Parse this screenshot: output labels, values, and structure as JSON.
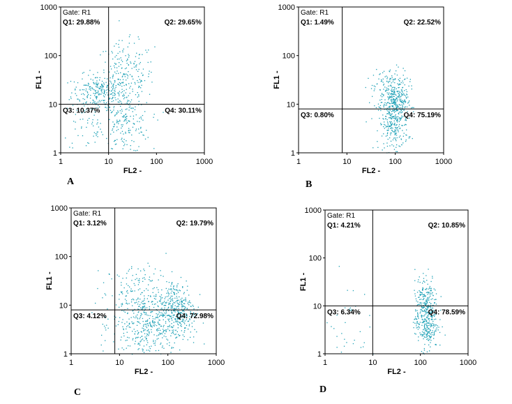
{
  "chart_data": [
    {
      "panel": "A",
      "type": "scatter",
      "xlabel": "FL2 -",
      "ylabel": "FL1 -",
      "scale": "log",
      "xlim": [
        1,
        1000
      ],
      "ylim": [
        1,
        1000
      ],
      "x_ticks": [
        "1",
        "10",
        "100",
        "1000"
      ],
      "y_ticks": [
        "1",
        "10",
        "100",
        "1000"
      ],
      "gate": "Gate: R1",
      "quadrant_x": 10,
      "quadrant_y": 10,
      "quadrants": {
        "q1": "Q1: 29.88%",
        "q2": "Q2: 29.65%",
        "q3": "Q3: 10.37%",
        "q4": "Q4: 30.11%"
      },
      "dot_color": "#1a9fb5",
      "clusters": [
        {
          "cx": 6,
          "cy": 18,
          "sx": 0.28,
          "sy": 0.18,
          "n": 230
        },
        {
          "cx": 22,
          "cy": 38,
          "sx": 0.3,
          "sy": 0.35,
          "n": 220
        },
        {
          "cx": 22,
          "cy": 4,
          "sx": 0.25,
          "sy": 0.3,
          "n": 170
        },
        {
          "cx": 4,
          "cy": 4,
          "sx": 0.3,
          "sy": 0.3,
          "n": 50
        }
      ]
    },
    {
      "panel": "B",
      "type": "scatter",
      "xlabel": "FL2 -",
      "ylabel": "FL1 -",
      "scale": "log",
      "xlim": [
        1,
        1000
      ],
      "ylim": [
        1,
        1000
      ],
      "x_ticks": [
        "1",
        "10",
        "100",
        "1000"
      ],
      "y_ticks": [
        "1",
        "10",
        "100",
        "1000"
      ],
      "gate": "Gate: R1",
      "quadrant_x": 8,
      "quadrant_y": 8,
      "quadrants": {
        "q1": "Q1: 1.49%",
        "q2": "Q2: 22.52%",
        "q3": "Q3: 0.80%",
        "q4": "Q4: 75.19%"
      },
      "dot_color": "#1a9fb5",
      "clusters": [
        {
          "cx": 80,
          "cy": 20,
          "sx": 0.18,
          "sy": 0.22,
          "n": 200
        },
        {
          "cx": 90,
          "cy": 4,
          "sx": 0.15,
          "sy": 0.28,
          "n": 260
        },
        {
          "cx": 110,
          "cy": 10,
          "sx": 0.12,
          "sy": 0.2,
          "n": 120
        }
      ]
    },
    {
      "panel": "C",
      "type": "scatter",
      "xlabel": "FL2 -",
      "ylabel": "FL1 -",
      "scale": "log",
      "xlim": [
        1,
        1000
      ],
      "ylim": [
        1,
        1000
      ],
      "x_ticks": [
        "1",
        "10",
        "100",
        "1000"
      ],
      "y_ticks": [
        "1",
        "10",
        "100",
        "1000"
      ],
      "gate": "Gate: R1",
      "quadrant_x": 8,
      "quadrant_y": 8,
      "quadrants": {
        "q1": "Q1: 3.12%",
        "q2": "Q2: 19.79%",
        "q3": "Q3: 4.12%",
        "q4": "Q4: 72.98%"
      },
      "dot_color": "#1a9fb5",
      "clusters": [
        {
          "cx": 35,
          "cy": 4,
          "sx": 0.35,
          "sy": 0.35,
          "n": 380
        },
        {
          "cx": 150,
          "cy": 8,
          "sx": 0.2,
          "sy": 0.32,
          "n": 320
        },
        {
          "cx": 25,
          "cy": 18,
          "sx": 0.35,
          "sy": 0.3,
          "n": 150
        }
      ]
    },
    {
      "panel": "D",
      "type": "scatter",
      "xlabel": "FL2 -",
      "ylabel": "FL1 -",
      "scale": "log",
      "xlim": [
        1,
        1000
      ],
      "ylim": [
        1,
        1000
      ],
      "x_ticks": [
        "1",
        "10",
        "100",
        "1000"
      ],
      "y_ticks": [
        "1",
        "10",
        "100",
        "1000"
      ],
      "gate": "Gate: R1",
      "quadrant_x": 10,
      "quadrant_y": 10,
      "quadrants": {
        "q1": "Q1: 4.21%",
        "q2": "Q2: 10.85%",
        "q3": "Q3: 6.34%",
        "q4": "Q4: 78.59%"
      },
      "dot_color": "#1a9fb5",
      "clusters": [
        {
          "cx": 130,
          "cy": 5,
          "sx": 0.12,
          "sy": 0.3,
          "n": 330
        },
        {
          "cx": 130,
          "cy": 18,
          "sx": 0.12,
          "sy": 0.2,
          "n": 100
        },
        {
          "cx": 2.5,
          "cy": 4,
          "sx": 0.25,
          "sy": 0.5,
          "n": 40
        }
      ]
    }
  ]
}
